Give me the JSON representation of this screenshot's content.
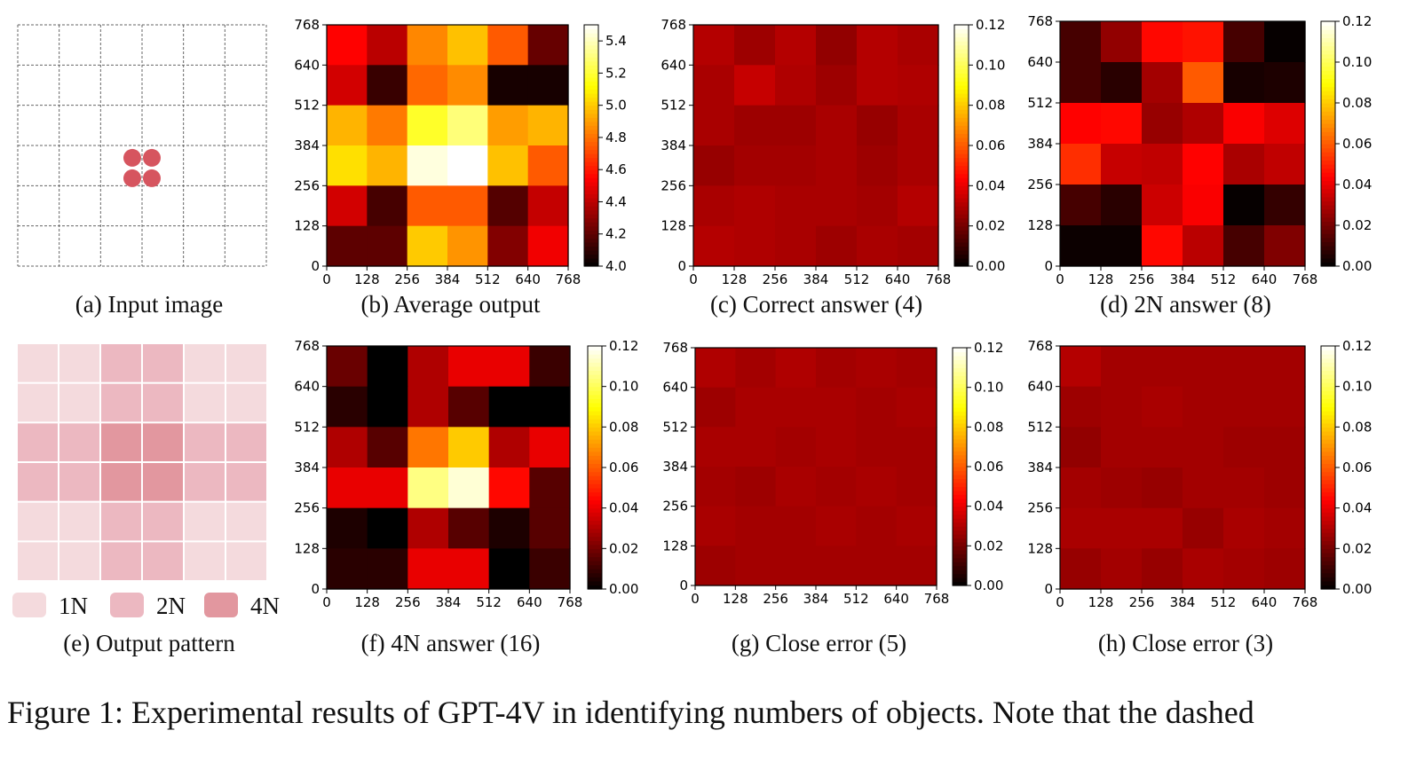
{
  "figure_caption": "Figure 1: Experimental results of GPT-4V in identifying numbers of objects. Note that the dashed",
  "panel_a": {
    "caption": "(a) Input image",
    "grid_cols": 6,
    "grid_rows": 6,
    "dot_color": "#d6555f"
  },
  "panel_e": {
    "caption": "(e) Output pattern",
    "legend": [
      {
        "label": "1N",
        "color": "#f4dadd"
      },
      {
        "label": "2N",
        "color": "#ecb8c1"
      },
      {
        "label": "4N",
        "color": "#e2979f"
      }
    ],
    "pattern": [
      [
        "1N",
        "1N",
        "2N",
        "2N",
        "1N",
        "1N"
      ],
      [
        "1N",
        "1N",
        "2N",
        "2N",
        "1N",
        "1N"
      ],
      [
        "2N",
        "2N",
        "4N",
        "4N",
        "2N",
        "2N"
      ],
      [
        "2N",
        "2N",
        "4N",
        "4N",
        "2N",
        "2N"
      ],
      [
        "1N",
        "1N",
        "2N",
        "2N",
        "1N",
        "1N"
      ],
      [
        "1N",
        "1N",
        "2N",
        "2N",
        "1N",
        "1N"
      ]
    ]
  },
  "chart_data": [
    {
      "id": "b",
      "type": "heatmap",
      "caption": "(b) Average output",
      "x_ticks": [
        "0",
        "128",
        "256",
        "384",
        "512",
        "640",
        "768"
      ],
      "y_ticks": [
        "0",
        "128",
        "256",
        "384",
        "512",
        "640",
        "768"
      ],
      "colorbar_range": [
        4.0,
        5.5
      ],
      "colorbar_ticks": [
        "4.0",
        "4.2",
        "4.4",
        "4.6",
        "4.8",
        "5.0",
        "5.2",
        "5.4"
      ],
      "colorbar_tick_values": [
        4.0,
        4.2,
        4.4,
        4.6,
        4.8,
        5.0,
        5.2,
        5.4
      ],
      "colormap": "hot",
      "values_top_to_bottom": [
        [
          4.55,
          4.4,
          4.85,
          4.98,
          4.75,
          4.22
        ],
        [
          4.45,
          4.12,
          4.78,
          4.86,
          4.05,
          4.05
        ],
        [
          4.95,
          4.82,
          5.18,
          5.3,
          4.9,
          4.95
        ],
        [
          5.05,
          4.95,
          5.45,
          5.55,
          4.98,
          4.75
        ],
        [
          4.45,
          4.15,
          4.75,
          4.75,
          4.18,
          4.42
        ],
        [
          4.2,
          4.2,
          5.0,
          4.88,
          4.28,
          4.52
        ]
      ]
    },
    {
      "id": "c",
      "type": "heatmap",
      "caption": "(c) Correct answer (4)",
      "x_ticks": [
        "0",
        "128",
        "256",
        "384",
        "512",
        "640",
        "768"
      ],
      "y_ticks": [
        "0",
        "128",
        "256",
        "384",
        "512",
        "640",
        "768"
      ],
      "colorbar_range": [
        0.0,
        0.12
      ],
      "colorbar_ticks": [
        "0.00",
        "0.02",
        "0.04",
        "0.06",
        "0.08",
        "0.10",
        "0.12"
      ],
      "colorbar_tick_values": [
        0.0,
        0.02,
        0.04,
        0.06,
        0.08,
        0.1,
        0.12
      ],
      "colormap": "hot",
      "values_top_to_bottom": [
        [
          0.031,
          0.027,
          0.031,
          0.025,
          0.031,
          0.029
        ],
        [
          0.029,
          0.034,
          0.03,
          0.027,
          0.031,
          0.03
        ],
        [
          0.029,
          0.027,
          0.027,
          0.029,
          0.026,
          0.029
        ],
        [
          0.026,
          0.028,
          0.028,
          0.029,
          0.027,
          0.029
        ],
        [
          0.029,
          0.03,
          0.029,
          0.029,
          0.028,
          0.031
        ],
        [
          0.031,
          0.03,
          0.029,
          0.027,
          0.029,
          0.028
        ]
      ]
    },
    {
      "id": "d",
      "type": "heatmap",
      "caption": "(d) 2N answer (8)",
      "x_ticks": [
        "0",
        "128",
        "256",
        "384",
        "512",
        "640",
        "768"
      ],
      "y_ticks": [
        "0",
        "128",
        "256",
        "384",
        "512",
        "640",
        "768"
      ],
      "colorbar_range": [
        0.0,
        0.12
      ],
      "colorbar_ticks": [
        "0.00",
        "0.02",
        "0.04",
        "0.06",
        "0.08",
        "0.10",
        "0.12"
      ],
      "colorbar_tick_values": [
        0.0,
        0.02,
        0.04,
        0.06,
        0.08,
        0.1,
        0.12
      ],
      "colormap": "hot",
      "values_top_to_bottom": [
        [
          0.012,
          0.025,
          0.045,
          0.047,
          0.012,
          0.001
        ],
        [
          0.012,
          0.007,
          0.028,
          0.06,
          0.004,
          0.005
        ],
        [
          0.044,
          0.045,
          0.026,
          0.03,
          0.043,
          0.038
        ],
        [
          0.052,
          0.034,
          0.033,
          0.044,
          0.029,
          0.033
        ],
        [
          0.012,
          0.007,
          0.035,
          0.043,
          0.001,
          0.009
        ],
        [
          0.002,
          0.002,
          0.045,
          0.032,
          0.012,
          0.022
        ]
      ]
    },
    {
      "id": "f",
      "type": "heatmap",
      "caption": "(f) 4N answer (16)",
      "x_ticks": [
        "0",
        "128",
        "256",
        "384",
        "512",
        "640",
        "768"
      ],
      "y_ticks": [
        "0",
        "128",
        "256",
        "384",
        "512",
        "640",
        "768"
      ],
      "colorbar_range": [
        0.0,
        0.12
      ],
      "colorbar_ticks": [
        "0.00",
        "0.02",
        "0.04",
        "0.06",
        "0.08",
        "0.10",
        "0.12"
      ],
      "colorbar_tick_values": [
        0.0,
        0.02,
        0.04,
        0.06,
        0.08,
        0.1,
        0.12
      ],
      "colormap": "hot",
      "values_top_to_bottom": [
        [
          0.018,
          0.0,
          0.03,
          0.04,
          0.04,
          0.01
        ],
        [
          0.007,
          0.0,
          0.03,
          0.015,
          0.0,
          0.0
        ],
        [
          0.03,
          0.015,
          0.065,
          0.08,
          0.03,
          0.04
        ],
        [
          0.04,
          0.04,
          0.105,
          0.115,
          0.045,
          0.015
        ],
        [
          0.005,
          0.0,
          0.03,
          0.015,
          0.005,
          0.015
        ],
        [
          0.007,
          0.007,
          0.04,
          0.04,
          0.0,
          0.01
        ]
      ]
    },
    {
      "id": "g",
      "type": "heatmap",
      "caption": "(g) Close error (5)",
      "x_ticks": [
        "0",
        "128",
        "256",
        "384",
        "512",
        "640",
        "768"
      ],
      "y_ticks": [
        "0",
        "128",
        "256",
        "384",
        "512",
        "640",
        "768"
      ],
      "colorbar_range": [
        0.0,
        0.12
      ],
      "colorbar_ticks": [
        "0.00",
        "0.02",
        "0.04",
        "0.06",
        "0.08",
        "0.10",
        "0.12"
      ],
      "colorbar_tick_values": [
        0.0,
        0.02,
        0.04,
        0.06,
        0.08,
        0.1,
        0.12
      ],
      "colormap": "hot",
      "values_top_to_bottom": [
        [
          0.03,
          0.028,
          0.03,
          0.028,
          0.029,
          0.028
        ],
        [
          0.027,
          0.029,
          0.029,
          0.029,
          0.028,
          0.029
        ],
        [
          0.029,
          0.029,
          0.028,
          0.029,
          0.028,
          0.028
        ],
        [
          0.028,
          0.027,
          0.029,
          0.028,
          0.029,
          0.028
        ],
        [
          0.029,
          0.028,
          0.028,
          0.029,
          0.028,
          0.029
        ],
        [
          0.027,
          0.028,
          0.028,
          0.028,
          0.028,
          0.028
        ]
      ]
    },
    {
      "id": "h",
      "type": "heatmap",
      "caption": "(h) Close error (3)",
      "x_ticks": [
        "0",
        "128",
        "256",
        "384",
        "512",
        "640",
        "768"
      ],
      "y_ticks": [
        "0",
        "128",
        "256",
        "384",
        "512",
        "640",
        "768"
      ],
      "colorbar_range": [
        0.0,
        0.12
      ],
      "colorbar_ticks": [
        "0.00",
        "0.02",
        "0.04",
        "0.06",
        "0.08",
        "0.10",
        "0.12"
      ],
      "colorbar_tick_values": [
        0.0,
        0.02,
        0.04,
        0.06,
        0.08,
        0.1,
        0.12
      ],
      "colormap": "hot",
      "values_top_to_bottom": [
        [
          0.031,
          0.028,
          0.028,
          0.028,
          0.028,
          0.028
        ],
        [
          0.027,
          0.028,
          0.029,
          0.028,
          0.028,
          0.028
        ],
        [
          0.025,
          0.028,
          0.028,
          0.028,
          0.027,
          0.027
        ],
        [
          0.028,
          0.027,
          0.026,
          0.028,
          0.028,
          0.027
        ],
        [
          0.029,
          0.029,
          0.029,
          0.026,
          0.029,
          0.028
        ],
        [
          0.026,
          0.028,
          0.026,
          0.029,
          0.028,
          0.027
        ]
      ]
    }
  ]
}
